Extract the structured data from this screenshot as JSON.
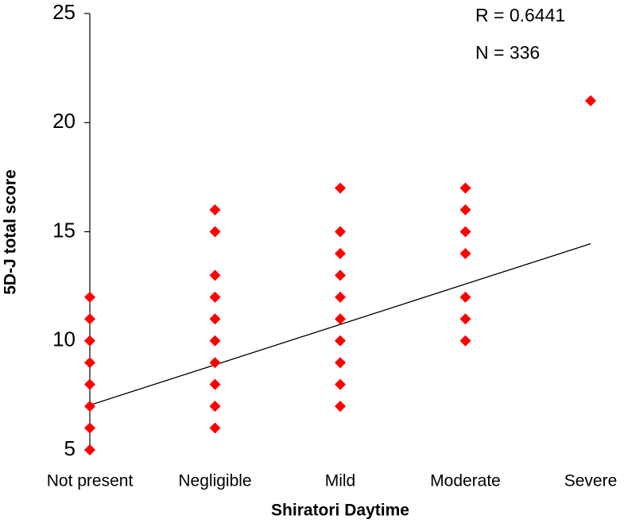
{
  "chart_data": {
    "type": "scatter",
    "xlabel": "Shiratori Daytime",
    "ylabel": "5D-J total score",
    "categories": [
      "Not present",
      "Negligible",
      "Mild",
      "Moderate",
      "Severe"
    ],
    "values": [
      [
        5,
        6,
        7,
        8,
        9,
        10,
        11,
        12
      ],
      [
        6,
        7,
        8,
        9,
        10,
        11,
        12,
        13,
        15,
        16
      ],
      [
        7,
        8,
        9,
        10,
        11,
        12,
        13,
        14,
        15,
        17
      ],
      [
        10,
        11,
        12,
        14,
        15,
        16,
        17
      ],
      [
        21
      ]
    ],
    "color": "#ff0000",
    "trendline": {
      "values": [
        7.05,
        14.45
      ],
      "color": "#000000"
    },
    "annotations": [
      "R = 0.6441",
      "N = 336"
    ],
    "ylim": [
      5,
      25
    ],
    "yticks": [
      5,
      10,
      15,
      20,
      25
    ]
  }
}
